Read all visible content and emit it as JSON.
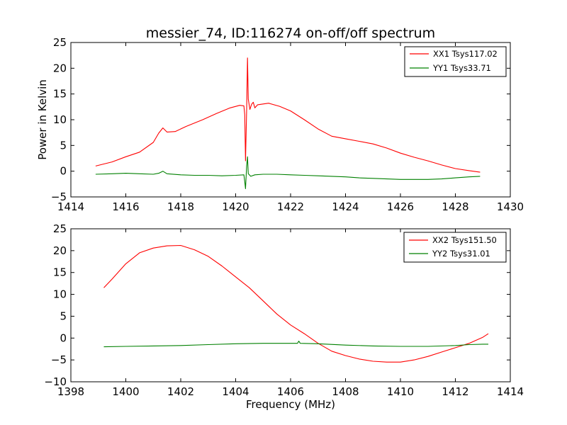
{
  "figure": {
    "title": "messier_74, ID:116274 on-off/off spectrum",
    "ylabel": "Power in Kelvin",
    "xlabel": "Frequency (MHz)"
  },
  "chart_data": [
    {
      "type": "line",
      "xlim": [
        1414,
        1430
      ],
      "ylim": [
        -5,
        25
      ],
      "xticks": [
        1414,
        1416,
        1418,
        1420,
        1422,
        1424,
        1426,
        1428,
        1430
      ],
      "yticks": [
        -5,
        0,
        5,
        10,
        15,
        20,
        25
      ],
      "grid": false,
      "legend_position": "top-right",
      "series": [
        {
          "name": "XX1 Tsys117.02",
          "color": "#ff0000",
          "x": [
            1414.9,
            1415.5,
            1416.0,
            1416.5,
            1417.0,
            1417.2,
            1417.35,
            1417.5,
            1417.8,
            1418.2,
            1418.8,
            1419.3,
            1419.8,
            1420.15,
            1420.3,
            1420.33,
            1420.36,
            1420.4,
            1420.43,
            1420.46,
            1420.52,
            1420.58,
            1420.64,
            1420.7,
            1420.8,
            1421.2,
            1421.6,
            1422.0,
            1422.5,
            1423.0,
            1423.5,
            1424.0,
            1424.5,
            1425.0,
            1425.5,
            1426.0,
            1426.5,
            1427.0,
            1427.5,
            1428.0,
            1428.5,
            1428.9
          ],
          "values": [
            1.0,
            1.8,
            2.8,
            3.7,
            5.6,
            7.4,
            8.4,
            7.6,
            7.7,
            8.7,
            10.0,
            11.2,
            12.3,
            12.8,
            12.7,
            11.0,
            2.0,
            12.0,
            22.0,
            14.0,
            12.0,
            13.0,
            13.4,
            12.3,
            12.9,
            13.2,
            12.6,
            11.7,
            10.0,
            8.2,
            6.8,
            6.3,
            5.8,
            5.3,
            4.5,
            3.5,
            2.7,
            2.0,
            1.2,
            0.5,
            0.1,
            -0.2
          ]
        },
        {
          "name": "YY1 Tsys33.71",
          "color": "#008000",
          "x": [
            1414.9,
            1415.5,
            1416.0,
            1416.5,
            1417.0,
            1417.2,
            1417.35,
            1417.5,
            1418.0,
            1418.5,
            1419.0,
            1419.5,
            1420.0,
            1420.3,
            1420.33,
            1420.36,
            1420.4,
            1420.43,
            1420.46,
            1420.55,
            1420.7,
            1421.0,
            1421.5,
            1422.0,
            1422.5,
            1423.0,
            1423.5,
            1424.0,
            1424.5,
            1425.0,
            1425.5,
            1426.0,
            1426.5,
            1427.0,
            1427.5,
            1428.0,
            1428.5,
            1428.9
          ],
          "values": [
            -0.6,
            -0.5,
            -0.4,
            -0.5,
            -0.6,
            -0.4,
            0.0,
            -0.5,
            -0.7,
            -0.8,
            -0.8,
            -0.9,
            -0.8,
            -0.7,
            -2.0,
            -3.4,
            1.0,
            2.8,
            -0.5,
            -1.0,
            -0.7,
            -0.6,
            -0.6,
            -0.7,
            -0.8,
            -0.9,
            -1.0,
            -1.1,
            -1.3,
            -1.4,
            -1.5,
            -1.6,
            -1.6,
            -1.6,
            -1.5,
            -1.3,
            -1.1,
            -1.0
          ]
        }
      ]
    },
    {
      "type": "line",
      "xlim": [
        1398,
        1414
      ],
      "ylim": [
        -10,
        25
      ],
      "xticks": [
        1398,
        1400,
        1402,
        1404,
        1406,
        1408,
        1410,
        1412,
        1414
      ],
      "yticks": [
        -10,
        -5,
        0,
        5,
        10,
        15,
        20,
        25
      ],
      "grid": false,
      "legend_position": "top-right",
      "series": [
        {
          "name": "XX2 Tsys151.50",
          "color": "#ff0000",
          "x": [
            1399.2,
            1399.5,
            1400.0,
            1400.5,
            1401.0,
            1401.5,
            1402.0,
            1402.5,
            1403.0,
            1403.5,
            1404.0,
            1404.5,
            1405.0,
            1405.5,
            1406.0,
            1406.5,
            1407.0,
            1407.5,
            1408.0,
            1408.5,
            1409.0,
            1409.5,
            1410.0,
            1410.5,
            1411.0,
            1411.5,
            1412.0,
            1412.5,
            1413.0,
            1413.2
          ],
          "values": [
            11.5,
            13.5,
            17.0,
            19.5,
            20.6,
            21.1,
            21.2,
            20.2,
            18.7,
            16.5,
            14.0,
            11.5,
            8.5,
            5.5,
            3.0,
            1.0,
            -1.2,
            -3.0,
            -4.0,
            -4.8,
            -5.3,
            -5.5,
            -5.5,
            -5.0,
            -4.2,
            -3.2,
            -2.2,
            -1.2,
            0.2,
            1.0
          ]
        },
        {
          "name": "YY2 Tsys31.01",
          "color": "#008000",
          "x": [
            1399.2,
            1400.0,
            1401.0,
            1402.0,
            1403.0,
            1404.0,
            1405.0,
            1406.0,
            1406.25,
            1406.3,
            1406.35,
            1407.0,
            1408.0,
            1409.0,
            1410.0,
            1411.0,
            1412.0,
            1412.5,
            1413.0,
            1413.2
          ],
          "values": [
            -2.0,
            -1.9,
            -1.8,
            -1.7,
            -1.5,
            -1.3,
            -1.2,
            -1.2,
            -1.2,
            -0.7,
            -1.2,
            -1.3,
            -1.6,
            -1.8,
            -1.9,
            -1.9,
            -1.7,
            -1.5,
            -1.4,
            -1.4
          ]
        }
      ]
    }
  ]
}
